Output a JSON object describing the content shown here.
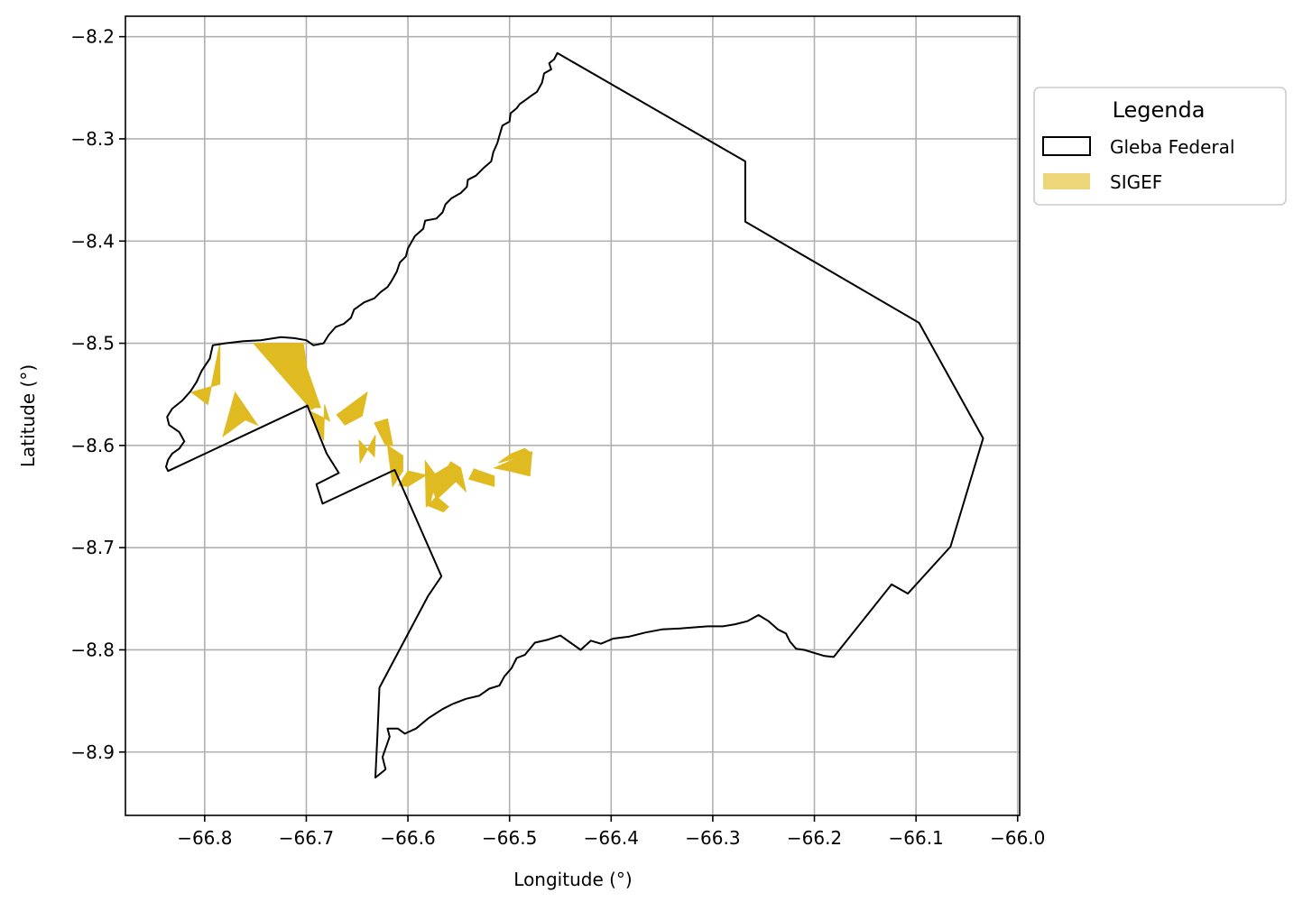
{
  "chart_data": {
    "type": "map",
    "xlabel": "Longitude (°)",
    "ylabel": "Latitude (°)",
    "xlim": [
      -66.878,
      -65.998
    ],
    "ylim": [
      -8.962,
      -8.18
    ],
    "xticks": [
      -66.8,
      -66.7,
      -66.6,
      -66.5,
      -66.4,
      -66.3,
      -66.2,
      -66.1,
      -66.0
    ],
    "xtick_labels": [
      "−66.8",
      "−66.7",
      "−66.6",
      "−66.5",
      "−66.4",
      "−66.3",
      "−66.2",
      "−66.1",
      "−66.0"
    ],
    "yticks": [
      -8.2,
      -8.3,
      -8.4,
      -8.5,
      -8.6,
      -8.7,
      -8.8,
      -8.9
    ],
    "ytick_labels": [
      "−8.2",
      "−8.3",
      "−8.4",
      "−8.5",
      "−8.6",
      "−8.7",
      "−8.8",
      "−8.9"
    ],
    "grid": true,
    "legend": {
      "title": "Legenda",
      "placement": "outside upper right",
      "entries": [
        {
          "label": "Gleba Federal",
          "style": "outline",
          "color": "#000000"
        },
        {
          "label": "SIGEF",
          "style": "fill",
          "color": "#dfba20"
        }
      ]
    },
    "gleba_federal_boundary": [
      [
        -66.453,
        -8.216
      ],
      [
        -66.456,
        -8.222
      ],
      [
        -66.461,
        -8.226
      ],
      [
        -66.459,
        -8.232
      ],
      [
        -66.466,
        -8.236
      ],
      [
        -66.468,
        -8.245
      ],
      [
        -66.473,
        -8.254
      ],
      [
        -66.479,
        -8.258
      ],
      [
        -66.483,
        -8.261
      ],
      [
        -66.49,
        -8.266
      ],
      [
        -66.493,
        -8.27
      ],
      [
        -66.499,
        -8.275
      ],
      [
        -66.5,
        -8.283
      ],
      [
        -66.507,
        -8.287
      ],
      [
        -66.51,
        -8.297
      ],
      [
        -66.512,
        -8.304
      ],
      [
        -66.516,
        -8.313
      ],
      [
        -66.518,
        -8.322
      ],
      [
        -66.525,
        -8.328
      ],
      [
        -66.533,
        -8.336
      ],
      [
        -66.541,
        -8.34
      ],
      [
        -66.542,
        -8.347
      ],
      [
        -66.548,
        -8.353
      ],
      [
        -66.557,
        -8.358
      ],
      [
        -66.563,
        -8.364
      ],
      [
        -66.566,
        -8.372
      ],
      [
        -66.572,
        -8.378
      ],
      [
        -66.583,
        -8.38
      ],
      [
        -66.585,
        -8.388
      ],
      [
        -66.593,
        -8.395
      ],
      [
        -66.6,
        -8.407
      ],
      [
        -66.602,
        -8.415
      ],
      [
        -66.608,
        -8.421
      ],
      [
        -66.611,
        -8.43
      ],
      [
        -66.616,
        -8.439
      ],
      [
        -66.62,
        -8.445
      ],
      [
        -66.627,
        -8.45
      ],
      [
        -66.633,
        -8.456
      ],
      [
        -66.643,
        -8.46
      ],
      [
        -66.653,
        -8.467
      ],
      [
        -66.656,
        -8.475
      ],
      [
        -66.663,
        -8.481
      ],
      [
        -66.671,
        -8.484
      ],
      [
        -66.678,
        -8.492
      ],
      [
        -66.683,
        -8.5
      ],
      [
        -66.693,
        -8.502
      ],
      [
        -66.7,
        -8.497
      ],
      [
        -66.712,
        -8.495
      ],
      [
        -66.725,
        -8.494
      ],
      [
        -66.745,
        -8.497
      ],
      [
        -66.762,
        -8.498
      ],
      [
        -66.78,
        -8.5
      ],
      [
        -66.792,
        -8.502
      ],
      [
        -66.795,
        -8.515
      ],
      [
        -66.803,
        -8.527
      ],
      [
        -66.808,
        -8.538
      ],
      [
        -66.814,
        -8.547
      ],
      [
        -66.822,
        -8.556
      ],
      [
        -66.832,
        -8.564
      ],
      [
        -66.837,
        -8.572
      ],
      [
        -66.835,
        -8.58
      ],
      [
        -66.825,
        -8.587
      ],
      [
        -66.82,
        -8.596
      ],
      [
        -66.825,
        -8.603
      ],
      [
        -66.832,
        -8.608
      ],
      [
        -66.836,
        -8.614
      ],
      [
        -66.838,
        -8.621
      ],
      [
        -66.836,
        -8.625
      ],
      [
        -66.699,
        -8.561
      ],
      [
        -66.68,
        -8.608
      ],
      [
        -66.668,
        -8.627
      ],
      [
        -66.69,
        -8.638
      ],
      [
        -66.684,
        -8.657
      ],
      [
        -66.613,
        -8.624
      ],
      [
        -66.567,
        -8.728
      ],
      [
        -66.58,
        -8.747
      ],
      [
        -66.628,
        -8.837
      ],
      [
        -66.63,
        -8.883
      ],
      [
        -66.632,
        -8.925
      ],
      [
        -66.622,
        -8.917
      ],
      [
        -66.625,
        -8.905
      ],
      [
        -66.618,
        -8.885
      ],
      [
        -66.62,
        -8.877
      ],
      [
        -66.61,
        -8.877
      ],
      [
        -66.603,
        -8.882
      ],
      [
        -66.592,
        -8.877
      ],
      [
        -66.58,
        -8.867
      ],
      [
        -66.566,
        -8.858
      ],
      [
        -66.556,
        -8.853
      ],
      [
        -66.543,
        -8.848
      ],
      [
        -66.53,
        -8.845
      ],
      [
        -66.52,
        -8.838
      ],
      [
        -66.51,
        -8.835
      ],
      [
        -66.505,
        -8.826
      ],
      [
        -66.498,
        -8.818
      ],
      [
        -66.493,
        -8.808
      ],
      [
        -66.485,
        -8.805
      ],
      [
        -66.475,
        -8.793
      ],
      [
        -66.462,
        -8.79
      ],
      [
        -66.45,
        -8.786
      ],
      [
        -66.44,
        -8.793
      ],
      [
        -66.43,
        -8.8
      ],
      [
        -66.42,
        -8.791
      ],
      [
        -66.41,
        -8.794
      ],
      [
        -66.398,
        -8.789
      ],
      [
        -66.382,
        -8.787
      ],
      [
        -66.366,
        -8.783
      ],
      [
        -66.35,
        -8.78
      ],
      [
        -66.332,
        -8.779
      ],
      [
        -66.318,
        -8.778
      ],
      [
        -66.305,
        -8.777
      ],
      [
        -66.29,
        -8.777
      ],
      [
        -66.278,
        -8.775
      ],
      [
        -66.266,
        -8.772
      ],
      [
        -66.255,
        -8.766
      ],
      [
        -66.245,
        -8.772
      ],
      [
        -66.236,
        -8.78
      ],
      [
        -66.228,
        -8.784
      ],
      [
        -66.224,
        -8.792
      ],
      [
        -66.218,
        -8.799
      ],
      [
        -66.21,
        -8.8
      ],
      [
        -66.2,
        -8.803
      ],
      [
        -66.19,
        -8.806
      ],
      [
        -66.181,
        -8.807
      ],
      [
        -66.124,
        -8.736
      ],
      [
        -66.108,
        -8.745
      ],
      [
        -66.066,
        -8.699
      ],
      [
        -66.034,
        -8.593
      ],
      [
        -66.097,
        -8.48
      ],
      [
        -66.268,
        -8.381
      ],
      [
        -66.268,
        -8.322
      ],
      [
        -66.453,
        -8.216
      ]
    ],
    "sigef_parcels": [
      [
        [
          -66.813,
          -8.548
        ],
        [
          -66.797,
          -8.56
        ],
        [
          -66.785,
          -8.5
        ],
        [
          -66.785,
          -8.54
        ]
      ],
      [
        [
          -66.782,
          -8.591
        ],
        [
          -66.76,
          -8.575
        ],
        [
          -66.748,
          -8.58
        ],
        [
          -66.77,
          -8.548
        ]
      ],
      [
        [
          -66.752,
          -8.5
        ],
        [
          -66.708,
          -8.5
        ],
        [
          -66.687,
          -8.56
        ],
        [
          -66.695,
          -8.565
        ]
      ],
      [
        [
          -66.71,
          -8.5
        ],
        [
          -66.703,
          -8.5
        ],
        [
          -66.694,
          -8.563
        ],
        [
          -66.686,
          -8.563
        ]
      ],
      [
        [
          -66.697,
          -8.566
        ],
        [
          -66.683,
          -8.595
        ],
        [
          -66.682,
          -8.56
        ],
        [
          -66.677,
          -8.576
        ]
      ],
      [
        [
          -66.67,
          -8.57
        ],
        [
          -66.64,
          -8.548
        ],
        [
          -66.645,
          -8.571
        ],
        [
          -66.662,
          -8.58
        ]
      ],
      [
        [
          -66.633,
          -8.578
        ],
        [
          -66.62,
          -8.574
        ],
        [
          -66.615,
          -8.6
        ],
        [
          -66.622,
          -8.6
        ]
      ],
      [
        [
          -66.648,
          -8.595
        ],
        [
          -66.633,
          -8.611
        ],
        [
          -66.632,
          -8.59
        ],
        [
          -66.647,
          -8.617
        ]
      ],
      [
        [
          -66.62,
          -8.6
        ],
        [
          -66.605,
          -8.61
        ],
        [
          -66.605,
          -8.625
        ],
        [
          -66.615,
          -8.64
        ]
      ],
      [
        [
          -66.609,
          -8.639
        ],
        [
          -66.6,
          -8.64
        ],
        [
          -66.582,
          -8.629
        ],
        [
          -66.6,
          -8.625
        ]
      ],
      [
        [
          -66.583,
          -8.615
        ],
        [
          -66.572,
          -8.63
        ],
        [
          -66.578,
          -8.657
        ],
        [
          -66.582,
          -8.66
        ]
      ],
      [
        [
          -66.58,
          -8.659
        ],
        [
          -66.565,
          -8.665
        ],
        [
          -66.56,
          -8.66
        ],
        [
          -66.572,
          -8.65
        ]
      ],
      [
        [
          -66.572,
          -8.653
        ],
        [
          -66.546,
          -8.629
        ],
        [
          -66.56,
          -8.62
        ],
        [
          -66.58,
          -8.632
        ]
      ],
      [
        [
          -66.563,
          -8.625
        ],
        [
          -66.558,
          -8.616
        ],
        [
          -66.548,
          -8.622
        ],
        [
          -66.543,
          -8.645
        ]
      ],
      [
        [
          -66.54,
          -8.633
        ],
        [
          -66.535,
          -8.623
        ],
        [
          -66.515,
          -8.63
        ],
        [
          -66.515,
          -8.64
        ]
      ],
      [
        [
          -66.511,
          -8.617
        ],
        [
          -66.498,
          -8.608
        ],
        [
          -66.485,
          -8.603
        ],
        [
          -66.478,
          -8.608
        ]
      ],
      [
        [
          -66.478,
          -8.606
        ],
        [
          -66.48,
          -8.63
        ],
        [
          -66.5,
          -8.625
        ],
        [
          -66.515,
          -8.622
        ]
      ]
    ]
  }
}
